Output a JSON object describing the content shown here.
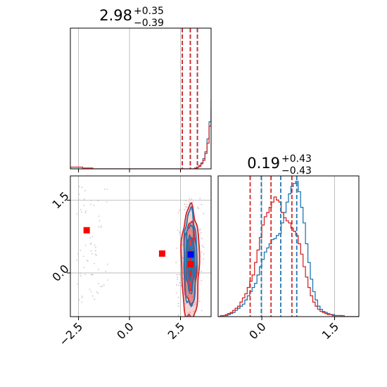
{
  "chart_data": [
    {
      "type": "histogram",
      "panel": "top-left",
      "title_median": "2.98",
      "title_plus": "+0.35",
      "title_minus": "−0.39",
      "xlim": [
        -2.9,
        4.0
      ],
      "grid": true,
      "bin_start": -2.9,
      "bin_width": 0.1,
      "series": [
        {
          "color": "#1f77b4",
          "values": [
            0,
            0,
            0,
            0,
            0,
            0,
            0,
            0,
            0,
            0,
            0,
            0,
            0,
            0,
            0,
            0,
            0,
            0,
            0,
            0,
            0,
            0,
            0,
            0,
            0,
            0,
            0,
            0,
            0,
            0,
            0,
            0,
            0,
            0,
            0,
            0,
            0,
            0,
            0,
            0,
            0,
            0,
            0,
            0,
            0,
            0,
            0,
            0,
            0,
            0,
            0,
            0,
            0,
            0,
            0,
            0,
            0,
            0,
            0,
            0,
            0,
            1,
            2,
            4,
            7,
            12,
            20,
            35,
            55,
            80,
            105,
            130,
            150,
            155,
            158,
            145,
            120,
            90,
            70,
            40,
            22,
            12,
            6,
            3,
            1,
            0,
            0,
            0,
            0,
            0,
            0,
            0,
            0,
            0,
            0,
            0,
            0,
            0,
            0,
            0,
            0,
            0
          ],
          "quantiles": [
            2.59,
            2.98,
            3.33
          ]
        },
        {
          "color": "#d62728",
          "values": [
            2,
            2,
            2,
            2,
            2,
            2,
            1,
            1,
            1,
            1,
            1,
            0,
            0,
            0,
            0,
            0,
            0,
            0,
            0,
            0,
            0,
            0,
            0,
            0,
            0,
            0,
            0,
            0,
            0,
            0,
            0,
            0,
            0,
            0,
            0,
            0,
            0,
            0,
            0,
            0,
            0,
            0,
            0,
            0,
            0,
            0,
            0,
            0,
            0,
            0,
            0,
            0,
            0,
            0,
            0,
            0,
            0,
            0,
            0,
            0,
            0,
            1,
            2,
            3,
            6,
            10,
            18,
            30,
            50,
            70,
            95,
            120,
            115,
            140,
            125,
            130,
            110,
            100,
            60,
            60,
            25,
            12,
            6,
            3,
            1,
            0,
            0,
            0,
            0,
            0,
            0,
            0,
            0,
            0,
            0,
            0,
            0,
            0,
            0,
            0,
            0,
            0
          ],
          "quantiles": [
            2.59,
            2.98,
            3.33
          ]
        }
      ]
    },
    {
      "type": "contour",
      "panel": "bottom-left",
      "xlim": [
        -2.9,
        4.0
      ],
      "ylim": [
        -0.9,
        2.0
      ],
      "grid": true,
      "xticks": [
        "−2.5",
        "0.0",
        "2.5"
      ],
      "yticks": [
        "0.0",
        "1.5"
      ],
      "series": [
        {
          "color": "#1f77b4",
          "center": [
            2.98,
            0.3
          ],
          "spread": [
            0.16,
            0.52
          ]
        },
        {
          "color": "#d62728",
          "center": [
            2.98,
            0.2
          ],
          "spread": [
            0.22,
            0.58
          ]
        }
      ],
      "markers": [
        {
          "color": "#ff0000",
          "x": -2.1,
          "y": 0.88
        },
        {
          "color": "#ff0000",
          "x": 1.6,
          "y": 0.4
        },
        {
          "color": "#ff0000",
          "x": 3.0,
          "y": 0.18
        },
        {
          "color": "#0000ff",
          "x": 3.0,
          "y": 0.38
        }
      ]
    },
    {
      "type": "histogram",
      "panel": "bottom-right",
      "title_median": "0.19",
      "title_plus": "+0.43",
      "title_minus": "−0.43",
      "xlim": [
        -0.9,
        2.0
      ],
      "xticks": [
        "0.0",
        "1.5"
      ],
      "grid": true,
      "bin_start": -0.9,
      "bin_width": 0.05,
      "series": [
        {
          "color": "#1f77b4",
          "values": [
            0,
            0,
            1,
            1,
            2,
            3,
            4,
            6,
            8,
            10,
            12,
            16,
            20,
            24,
            28,
            32,
            40,
            48,
            55,
            62,
            66,
            70,
            74,
            75,
            78,
            80,
            90,
            100,
            110,
            118,
            125,
            128,
            130,
            120,
            105,
            90,
            70,
            52,
            36,
            24,
            16,
            10,
            7,
            5,
            4,
            3,
            2,
            2,
            1,
            1,
            1,
            1,
            0,
            0,
            0,
            0,
            0,
            0
          ],
          "quantiles": [
            -0.01,
            0.39,
            0.72
          ]
        },
        {
          "color": "#d62728",
          "values": [
            0,
            1,
            1,
            2,
            3,
            4,
            6,
            8,
            10,
            14,
            18,
            22,
            28,
            34,
            40,
            52,
            64,
            76,
            88,
            96,
            100,
            105,
            110,
            115,
            112,
            110,
            100,
            95,
            92,
            90,
            85,
            82,
            78,
            70,
            60,
            48,
            38,
            28,
            20,
            14,
            10,
            7,
            5,
            4,
            3,
            2,
            2,
            1,
            1,
            1,
            1,
            0,
            0,
            0,
            0,
            0,
            0,
            0
          ],
          "quantiles": [
            -0.24,
            0.19,
            0.62
          ]
        }
      ]
    }
  ]
}
